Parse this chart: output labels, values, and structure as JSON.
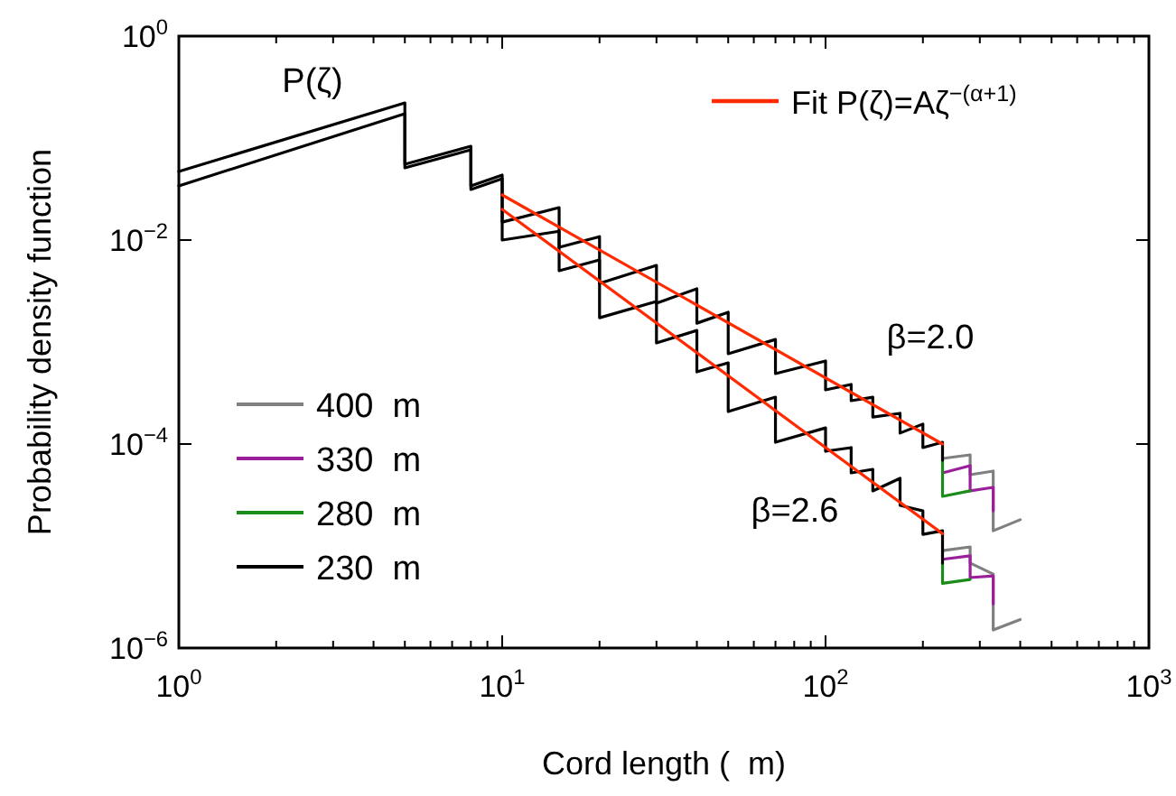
{
  "chart_data": {
    "type": "line",
    "xlabel": "Cord length (  m)",
    "ylabel": "Probability density function",
    "log": "xy",
    "legend": "left",
    "xlim": [
      1,
      1000
    ],
    "ylim": [
      1e-06,
      1
    ],
    "xticks": [
      {
        "value": 1,
        "label": "10$^{0}$"
      },
      {
        "value": 2,
        "label": null
      },
      {
        "value": 3,
        "label": null
      },
      {
        "value": 4,
        "label": null
      },
      {
        "value": 5,
        "label": null
      },
      {
        "value": 6,
        "label": null
      },
      {
        "value": 7,
        "label": null
      },
      {
        "value": 8,
        "label": null
      },
      {
        "value": 9,
        "label": null
      },
      {
        "value": 10,
        "label": "10$^{1}$"
      },
      {
        "value": 20,
        "label": null
      },
      {
        "value": 30,
        "label": null
      },
      {
        "value": 40,
        "label": null
      },
      {
        "value": 50,
        "label": null
      },
      {
        "value": 60,
        "label": null
      },
      {
        "value": 70,
        "label": null
      },
      {
        "value": 80,
        "label": null
      },
      {
        "value": 90,
        "label": null
      },
      {
        "value": 100,
        "label": "10$^{2}$"
      },
      {
        "value": 200,
        "label": null
      },
      {
        "value": 300,
        "label": null
      },
      {
        "value": 400,
        "label": null
      },
      {
        "value": 500,
        "label": null
      },
      {
        "value": 600,
        "label": null
      },
      {
        "value": 700,
        "label": null
      },
      {
        "value": 800,
        "label": null
      },
      {
        "value": 900,
        "label": null
      },
      {
        "value": 1000,
        "label": "10$^{3}$"
      }
    ],
    "yticks": [
      {
        "value": 1e-06,
        "label": "10$^{−6}$"
      },
      {
        "value": 0.0001,
        "label": "10$^{−4}$"
      },
      {
        "value": 0.01,
        "label": "10$^{−2}$"
      },
      {
        "value": 1,
        "label": "10$^{0}$"
      }
    ],
    "annotations": [
      "P(ζ)",
      "β=2.0",
      "β=2.6"
    ],
    "series": [
      {
        "name": "400  m",
        "color": "#808080",
        "x": [
          230,
          280,
          280,
          330,
          330,
          400
        ],
        "values": [
          7.22e-05,
          7.83e-05,
          5e-05,
          5.43e-05,
          1.41e-05,
          1.81e-05
        ]
      },
      {
        "color": "#808080",
        "x": [
          230,
          280,
          280,
          330,
          330,
          400
        ],
        "values": [
          9e-06,
          9.8e-06,
          6.8e-06,
          5.3e-06,
          1.5e-06,
          1.9e-06
        ]
      },
      {
        "name": "330  m",
        "color": "#9b1f9b",
        "x": [
          230,
          280,
          280,
          330,
          330
        ],
        "values": [
          5.21e-05,
          6.14e-05,
          3.47e-05,
          3.76e-05,
          2.21e-05
        ]
      },
      {
        "color": "#9b1f9b",
        "x": [
          230,
          280,
          280,
          330,
          330
        ],
        "values": [
          7.4e-06,
          8e-06,
          4.9e-06,
          5.1e-06,
          2.7e-06
        ]
      },
      {
        "name": "280  m",
        "color": "#1a8c1a",
        "x": [
          230,
          230,
          280
        ],
        "values": [
          6.93e-05,
          3.07e-05,
          3.47e-05
        ]
      },
      {
        "color": "#1a8c1a",
        "x": [
          230,
          230,
          280
        ],
        "values": [
          6.8e-06,
          4.3e-06,
          4.7e-06
        ]
      },
      {
        "name": "230  m",
        "color": "#000000",
        "x": [
          1,
          5,
          5,
          8,
          8,
          10,
          10,
          15,
          15,
          20,
          20,
          30,
          30,
          40,
          40,
          50,
          50,
          70,
          70,
          100,
          100,
          120,
          120,
          140,
          140,
          170,
          170,
          200,
          200,
          230,
          230
        ],
        "values": [
          0.0471,
          0.221,
          0.0554,
          0.0832,
          0.034,
          0.0434,
          0.015,
          0.0208,
          0.00849,
          0.0108,
          0.00376,
          0.00565,
          0.0024,
          0.00333,
          0.00153,
          0.00196,
          0.000767,
          0.00106,
          0.00049,
          0.000652,
          0.00034,
          0.000384,
          0.000266,
          0.000288,
          0.000184,
          0.0002,
          0.000128,
          0.000157,
          9.22e-05,
          0.000104,
          6.93e-05
        ]
      },
      {
        "color": "#000000",
        "x": [
          1,
          5,
          5,
          8,
          8,
          10,
          10,
          15,
          15,
          20,
          20,
          30,
          30,
          40,
          40,
          50,
          50,
          70,
          70,
          100,
          100,
          120,
          120,
          140,
          140,
          170,
          170,
          200,
          200,
          230,
          230
        ],
        "values": [
          0.034,
          0.173,
          0.0511,
          0.0767,
          0.0313,
          0.04,
          0.01,
          0.0122,
          0.005,
          0.00638,
          0.00173,
          0.0025,
          0.00098,
          0.0013,
          0.00051,
          0.000625,
          0.000208,
          0.000288,
          0.000104,
          0.000144,
          8.49e-05,
          9.22e-05,
          5.21e-05,
          5.65e-05,
          3.47e-05,
          4.61e-05,
          2.5e-05,
          2.21e-05,
          1.3e-05,
          1.41e-05,
          6.8e-06
        ]
      },
      {
        "name": "Fit P(ζ)=Aζ$^{−(α+1)}$",
        "color": "#ff2a00",
        "x": [
          10,
          230
        ],
        "values": [
          0.0277,
          0.0001
        ]
      },
      {
        "color": "#ff2a00",
        "x": [
          10,
          230
        ],
        "values": [
          0.02,
          1.32e-05
        ]
      }
    ]
  }
}
